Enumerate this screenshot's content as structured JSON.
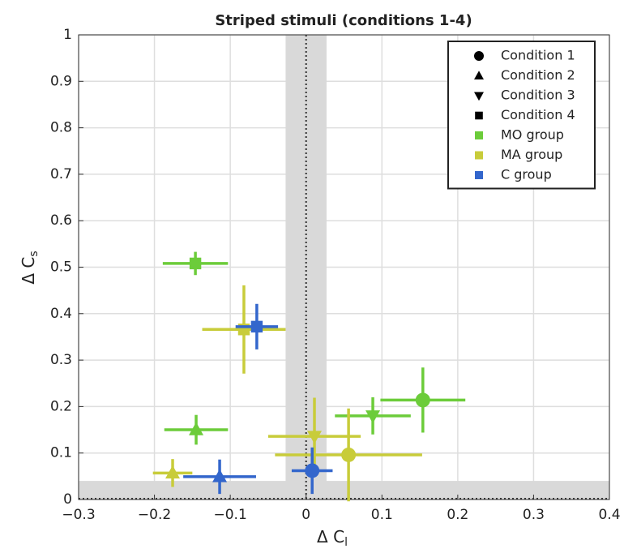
{
  "chart_data": {
    "type": "scatter",
    "title": "Striped stimuli (conditions 1-4)",
    "xlabel": {
      "text": "Δ C",
      "sub": "l"
    },
    "ylabel": {
      "text": "Δ C",
      "sub": "s"
    },
    "xlim": [
      -0.3,
      0.4
    ],
    "ylim": [
      0,
      1
    ],
    "xticks": [
      {
        "value": -0.3,
        "label": "−0.3"
      },
      {
        "value": -0.2,
        "label": "−0.2"
      },
      {
        "value": -0.1,
        "label": "−0.1"
      },
      0,
      0.1,
      0.2,
      0.3,
      0.4
    ],
    "yticks": [
      0,
      0.1,
      0.2,
      0.3,
      0.4,
      0.5,
      0.6,
      0.7,
      0.8,
      0.9,
      1
    ],
    "grid": true,
    "legend": "upper right",
    "bands": {
      "x": [
        -0.027,
        0.027
      ],
      "y": [
        0,
        0.04
      ],
      "color": "#d9d9d9"
    },
    "conditions": [
      {
        "name": "Condition 1",
        "marker": "circle"
      },
      {
        "name": "Condition 2",
        "marker": "triangle-up"
      },
      {
        "name": "Condition 3",
        "marker": "triangle-down"
      },
      {
        "name": "Condition 4",
        "marker": "square"
      }
    ],
    "series": [
      {
        "name": "MO group",
        "color": "#6ccc3a",
        "markers": [
          "circle",
          "triangle-up",
          "triangle-down",
          "square"
        ],
        "x": [
          0.154,
          -0.145,
          0.088,
          -0.146
        ],
        "xerr": [
          0.056,
          0.042,
          0.05,
          0.043
        ],
        "y": [
          0.214,
          0.15,
          0.18,
          0.508
        ],
        "yerr": [
          0.07,
          0.032,
          0.04,
          0.025
        ]
      },
      {
        "name": "MA group",
        "color": "#c8cc3a",
        "markers": [
          "circle",
          "triangle-up",
          "triangle-down",
          "square"
        ],
        "x": [
          0.056,
          -0.176,
          0.011,
          -0.082
        ],
        "xerr": [
          0.097,
          0.026,
          0.061,
          0.055
        ],
        "y": [
          0.096,
          0.057,
          0.136,
          0.366
        ],
        "yerr": [
          0.1,
          0.03,
          0.083,
          0.095
        ]
      },
      {
        "name": "C group",
        "color": "#3366cc",
        "markers": [
          "circle",
          "triangle-up",
          "square"
        ],
        "x": [
          0.008,
          -0.114,
          -0.065
        ],
        "xerr": [
          0.027,
          0.048,
          0.028
        ],
        "y": [
          0.062,
          0.049,
          0.372
        ],
        "yerr": [
          0.05,
          0.037,
          0.049
        ]
      }
    ]
  }
}
